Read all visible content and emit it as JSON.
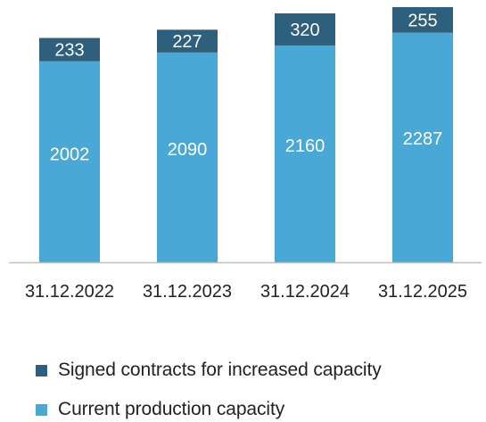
{
  "chart_data": {
    "type": "bar",
    "stacked": true,
    "categories": [
      "31.12.2022",
      "31.12.2023",
      "31.12.2024",
      "31.12.2025"
    ],
    "series": [
      {
        "name": "Current production capacity",
        "values": [
          2002,
          2090,
          2160,
          2287
        ],
        "color": "#4aa8d6"
      },
      {
        "name": "Signed contracts for increased capacity",
        "values": [
          233,
          227,
          320,
          255
        ],
        "color": "#2e5f7c"
      }
    ],
    "ylim": [
      0,
      2542
    ],
    "grid": false,
    "axis_line_color": "#bfbfbf",
    "label_color": "#ffffff",
    "legend_position": "bottom-left"
  },
  "legend": {
    "items": [
      {
        "label": "Signed contracts for increased capacity",
        "color": "#2e5f7c"
      },
      {
        "label": "Current production capacity",
        "color": "#4aa8d6"
      }
    ]
  }
}
